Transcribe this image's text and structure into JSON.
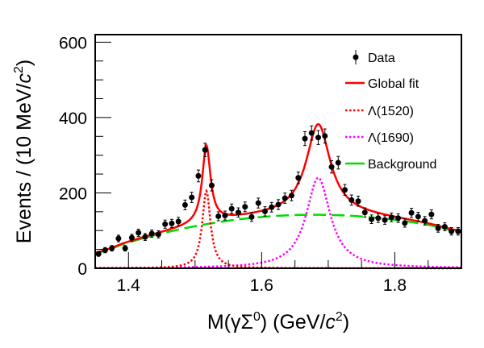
{
  "chart_data": {
    "type": "scatter",
    "xlabel": "M(γΣ0) (GeV/c2)",
    "xlabel_parts": {
      "pre": "M(γΣ",
      "sup1": "0",
      "mid": ") (GeV/",
      "c": "c",
      "sup2": "2",
      "post": ")"
    },
    "ylabel": "Events / (10 MeV/c2)",
    "ylabel_parts": {
      "pre": "Events / (10 MeV/",
      "c": "c",
      "sup": "2",
      "post": ")"
    },
    "xlim": [
      1.35,
      1.9
    ],
    "ylim": [
      0,
      620
    ],
    "xticks": [
      "1.4",
      "1.6",
      "1.8"
    ],
    "yticks": [
      "0",
      "200",
      "400",
      "600"
    ],
    "grid": false,
    "legend_position": "top-right",
    "legend": [
      "Data",
      "Global fit",
      "Λ(1520)",
      "Λ(1690)",
      "Background"
    ],
    "data": {
      "x": [
        1.355,
        1.365,
        1.375,
        1.385,
        1.395,
        1.405,
        1.415,
        1.425,
        1.435,
        1.445,
        1.455,
        1.465,
        1.475,
        1.485,
        1.495,
        1.505,
        1.515,
        1.525,
        1.535,
        1.545,
        1.555,
        1.565,
        1.575,
        1.585,
        1.595,
        1.605,
        1.615,
        1.625,
        1.635,
        1.645,
        1.655,
        1.665,
        1.675,
        1.685,
        1.695,
        1.705,
        1.715,
        1.725,
        1.735,
        1.745,
        1.755,
        1.765,
        1.775,
        1.785,
        1.795,
        1.805,
        1.815,
        1.825,
        1.835,
        1.845,
        1.855,
        1.865,
        1.875,
        1.885,
        1.895
      ],
      "y": [
        38,
        48,
        53,
        79,
        53,
        81,
        94,
        83,
        92,
        90,
        117,
        119,
        124,
        168,
        188,
        245,
        314,
        220,
        138,
        140,
        158,
        148,
        163,
        136,
        173,
        151,
        162,
        169,
        186,
        193,
        240,
        344,
        359,
        347,
        351,
        269,
        280,
        208,
        181,
        178,
        148,
        130,
        133,
        128,
        135,
        133,
        120,
        147,
        137,
        126,
        143,
        106,
        110,
        98,
        98
      ]
    },
    "background": {
      "x": [
        1.35,
        1.4,
        1.45,
        1.5,
        1.55,
        1.6,
        1.65,
        1.7,
        1.75,
        1.8,
        1.85,
        1.9
      ],
      "y": [
        40,
        68.5,
        92.4,
        111.6,
        126.2,
        136,
        141.2,
        141.6,
        137.4,
        128.5,
        115,
        96.6
      ]
    },
    "components": [
      {
        "name": "Λ(1520)",
        "peak_position": 1.517,
        "peak_height": 205,
        "half_width": 0.0075
      },
      {
        "name": "Λ(1690)",
        "peak_position": 1.685,
        "peak_height": 240,
        "half_width": 0.022
      }
    ],
    "colors": {
      "data": "#000000",
      "global_fit": "#ff0000",
      "l1520": "#ff0000",
      "l1690": "#ff00ff",
      "background": "#00dd00"
    }
  }
}
